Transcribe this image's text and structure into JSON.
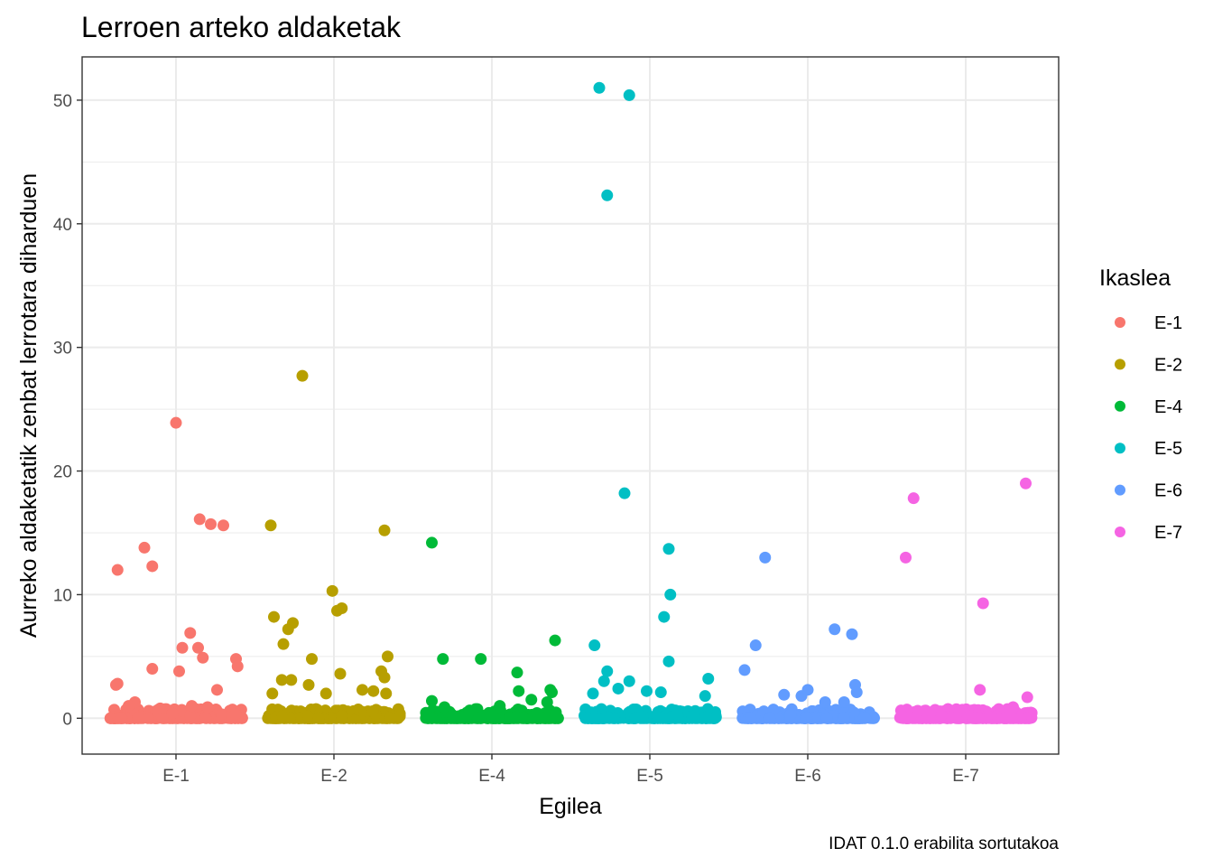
{
  "chart_data": {
    "type": "scatter",
    "title": "Lerroen arteko aldaketak",
    "xlabel": "Egilea",
    "ylabel": "Aurreko aldaketatik zenbat lerrotara diharduen",
    "caption": "IDAT 0.1.0 erabilita sortutakoa",
    "categories": [
      "E-1",
      "E-2",
      "E-4",
      "E-5",
      "E-6",
      "E-7"
    ],
    "y_ticks": [
      0,
      10,
      20,
      30,
      40,
      50
    ],
    "ylim": [
      -2.9,
      53.5
    ],
    "grid": true,
    "jitter": "horizontal",
    "legend": {
      "title": "Ikaslea",
      "position": "right",
      "entries": [
        "E-1",
        "E-2",
        "E-4",
        "E-5",
        "E-6",
        "E-7"
      ]
    },
    "colors": {
      "E-1": "#F8766D",
      "E-2": "#B79F00",
      "E-4": "#00BA38",
      "E-5": "#00BFC4",
      "E-6": "#619CFF",
      "E-7": "#F564E3"
    },
    "series": [
      {
        "name": "E-1",
        "points": [
          {
            "x": 0.0,
            "y": 23.9
          },
          {
            "x": 0.15,
            "y": 16.1
          },
          {
            "x": 0.22,
            "y": 15.7
          },
          {
            "x": 0.3,
            "y": 15.6
          },
          {
            "x": -0.2,
            "y": 13.8
          },
          {
            "x": -0.15,
            "y": 12.3
          },
          {
            "x": -0.37,
            "y": 12.0
          },
          {
            "x": 0.09,
            "y": 6.9
          },
          {
            "x": 0.04,
            "y": 5.7
          },
          {
            "x": 0.14,
            "y": 5.7
          },
          {
            "x": 0.17,
            "y": 4.9
          },
          {
            "x": 0.38,
            "y": 4.8
          },
          {
            "x": -0.15,
            "y": 4.0
          },
          {
            "x": 0.02,
            "y": 3.8
          },
          {
            "x": 0.39,
            "y": 4.2
          },
          {
            "x": -0.37,
            "y": 2.8
          },
          {
            "x": -0.38,
            "y": 2.7
          },
          {
            "x": 0.26,
            "y": 2.3
          },
          {
            "x": -0.26,
            "y": 1.3
          },
          {
            "x": -0.3,
            "y": 1.0
          },
          {
            "x": 0.1,
            "y": 1.0
          },
          {
            "x": 0.2,
            "y": 0.9
          },
          {
            "x": -0.1,
            "y": 0.8
          }
        ]
      },
      {
        "name": "E-2",
        "points": [
          {
            "x": -0.2,
            "y": 27.7
          },
          {
            "x": -0.4,
            "y": 15.6
          },
          {
            "x": 0.32,
            "y": 15.2
          },
          {
            "x": -0.01,
            "y": 10.3
          },
          {
            "x": 0.02,
            "y": 8.7
          },
          {
            "x": 0.05,
            "y": 8.9
          },
          {
            "x": -0.38,
            "y": 8.2
          },
          {
            "x": -0.26,
            "y": 7.7
          },
          {
            "x": -0.29,
            "y": 7.2
          },
          {
            "x": -0.32,
            "y": 6.0
          },
          {
            "x": -0.14,
            "y": 4.8
          },
          {
            "x": 0.34,
            "y": 5.0
          },
          {
            "x": 0.3,
            "y": 3.8
          },
          {
            "x": 0.32,
            "y": 3.3
          },
          {
            "x": 0.04,
            "y": 3.6
          },
          {
            "x": -0.33,
            "y": 3.1
          },
          {
            "x": -0.27,
            "y": 3.1
          },
          {
            "x": -0.16,
            "y": 2.7
          },
          {
            "x": 0.18,
            "y": 2.3
          },
          {
            "x": 0.25,
            "y": 2.2
          },
          {
            "x": -0.39,
            "y": 2.0
          },
          {
            "x": 0.33,
            "y": 2.0
          },
          {
            "x": -0.05,
            "y": 2.0
          }
        ]
      },
      {
        "name": "E-4",
        "points": [
          {
            "x": -0.38,
            "y": 14.2
          },
          {
            "x": 0.4,
            "y": 6.3
          },
          {
            "x": -0.31,
            "y": 4.8
          },
          {
            "x": -0.07,
            "y": 4.8
          },
          {
            "x": 0.16,
            "y": 3.7
          },
          {
            "x": 0.17,
            "y": 2.2
          },
          {
            "x": 0.37,
            "y": 2.3
          },
          {
            "x": 0.38,
            "y": 2.1
          },
          {
            "x": -0.38,
            "y": 1.4
          },
          {
            "x": 0.25,
            "y": 1.5
          },
          {
            "x": 0.35,
            "y": 1.3
          },
          {
            "x": 0.05,
            "y": 1.0
          },
          {
            "x": -0.3,
            "y": 0.9
          }
        ]
      },
      {
        "name": "E-5",
        "points": [
          {
            "x": -0.32,
            "y": 51.0
          },
          {
            "x": -0.13,
            "y": 50.4
          },
          {
            "x": -0.27,
            "y": 42.3
          },
          {
            "x": -0.16,
            "y": 18.2
          },
          {
            "x": 0.12,
            "y": 13.7
          },
          {
            "x": 0.13,
            "y": 10.0
          },
          {
            "x": 0.09,
            "y": 8.2
          },
          {
            "x": -0.35,
            "y": 5.9
          },
          {
            "x": 0.12,
            "y": 4.6
          },
          {
            "x": -0.27,
            "y": 3.8
          },
          {
            "x": -0.13,
            "y": 3.0
          },
          {
            "x": -0.29,
            "y": 3.0
          },
          {
            "x": 0.37,
            "y": 3.2
          },
          {
            "x": -0.2,
            "y": 2.4
          },
          {
            "x": -0.36,
            "y": 2.0
          },
          {
            "x": -0.02,
            "y": 2.2
          },
          {
            "x": 0.07,
            "y": 2.1
          },
          {
            "x": 0.35,
            "y": 1.8
          }
        ]
      },
      {
        "name": "E-6",
        "points": [
          {
            "x": -0.27,
            "y": 13.0
          },
          {
            "x": 0.17,
            "y": 7.2
          },
          {
            "x": 0.28,
            "y": 6.8
          },
          {
            "x": -0.33,
            "y": 5.9
          },
          {
            "x": -0.4,
            "y": 3.9
          },
          {
            "x": 0.3,
            "y": 2.7
          },
          {
            "x": 0.31,
            "y": 2.1
          },
          {
            "x": 0.0,
            "y": 2.3
          },
          {
            "x": -0.15,
            "y": 1.9
          },
          {
            "x": -0.04,
            "y": 1.8
          },
          {
            "x": 0.11,
            "y": 1.3
          },
          {
            "x": 0.23,
            "y": 1.3
          }
        ]
      },
      {
        "name": "E-7",
        "points": [
          {
            "x": 0.38,
            "y": 19.0
          },
          {
            "x": -0.33,
            "y": 17.8
          },
          {
            "x": -0.38,
            "y": 13.0
          },
          {
            "x": 0.11,
            "y": 9.3
          },
          {
            "x": 0.09,
            "y": 2.3
          },
          {
            "x": 0.39,
            "y": 1.7
          },
          {
            "x": 0.3,
            "y": 0.9
          }
        ]
      }
    ]
  }
}
